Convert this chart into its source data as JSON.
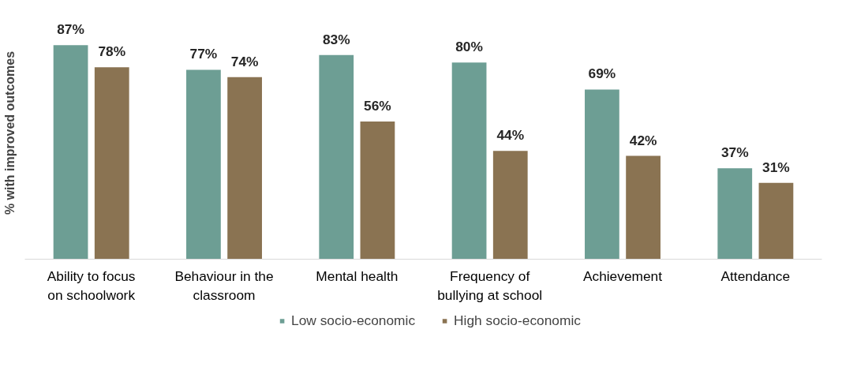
{
  "chart_data": {
    "type": "bar",
    "ylabel": "% with improved outcomes",
    "categories": [
      "Ability to focus\non schoolwork",
      "Behaviour in the\nclassroom",
      "Mental health",
      "Frequency of\nbullying at school",
      "Achievement",
      "Attendance"
    ],
    "series": [
      {
        "name": "Low socio-economic",
        "color": "#6d9e94",
        "values": [
          87,
          77,
          83,
          80,
          69,
          37
        ],
        "value_labels": [
          "87%",
          "77%",
          "83%",
          "80%",
          "69%",
          "37%"
        ]
      },
      {
        "name": "High socio-economic",
        "color": "#8a7352",
        "values": [
          78,
          74,
          56,
          44,
          42,
          31
        ],
        "value_labels": [
          "78%",
          "74%",
          "56%",
          "44%",
          "42%",
          "31%"
        ]
      }
    ],
    "tick_labels": "x",
    "legend": "bottom"
  }
}
